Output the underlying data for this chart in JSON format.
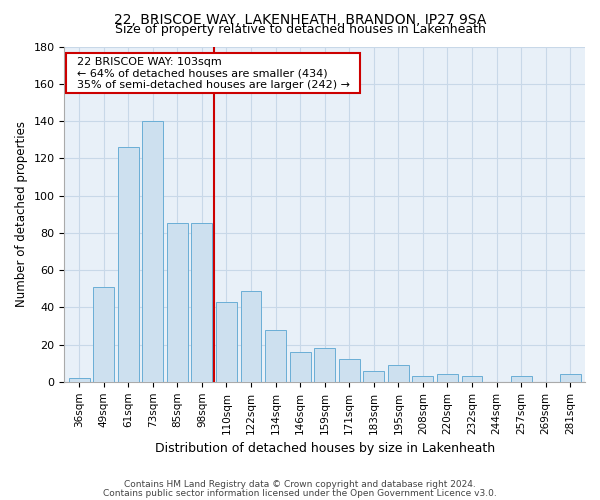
{
  "title1": "22, BRISCOE WAY, LAKENHEATH, BRANDON, IP27 9SA",
  "title2": "Size of property relative to detached houses in Lakenheath",
  "xlabel": "Distribution of detached houses by size in Lakenheath",
  "ylabel": "Number of detached properties",
  "categories": [
    "36sqm",
    "49sqm",
    "61sqm",
    "73sqm",
    "85sqm",
    "98sqm",
    "110sqm",
    "122sqm",
    "134sqm",
    "146sqm",
    "159sqm",
    "171sqm",
    "183sqm",
    "195sqm",
    "208sqm",
    "220sqm",
    "232sqm",
    "244sqm",
    "257sqm",
    "269sqm",
    "281sqm"
  ],
  "values": [
    2,
    51,
    126,
    140,
    85,
    85,
    43,
    49,
    28,
    16,
    18,
    12,
    6,
    9,
    3,
    4,
    3,
    0,
    3,
    0,
    4
  ],
  "bar_color": "#cde0ef",
  "bar_edge_color": "#6aaed6",
  "ylim": [
    0,
    180
  ],
  "yticks": [
    0,
    20,
    40,
    60,
    80,
    100,
    120,
    140,
    160,
    180
  ],
  "vline_x": 6.0,
  "vline_color": "#cc0000",
  "annotation_title": "22 BRISCOE WAY: 103sqm",
  "annotation_line1": "← 64% of detached houses are smaller (434)",
  "annotation_line2": "35% of semi-detached houses are larger (242) →",
  "annotation_box_color": "#ffffff",
  "annotation_box_edge": "#cc0000",
  "footer1": "Contains HM Land Registry data © Crown copyright and database right 2024.",
  "footer2": "Contains public sector information licensed under the Open Government Licence v3.0.",
  "bg_color": "#ffffff",
  "grid_color": "#c8d8e8"
}
